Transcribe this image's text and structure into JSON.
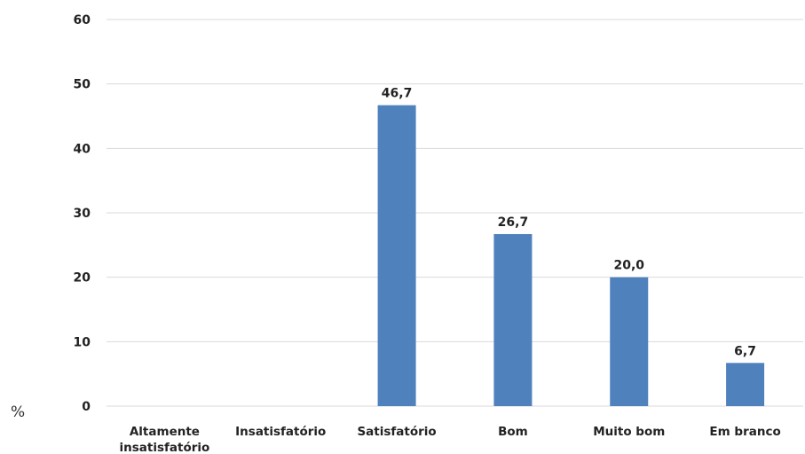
{
  "chart_data": {
    "type": "bar",
    "categories": [
      "Altamente insatisfatório",
      "Insatisfatório",
      "Satisfatório",
      "Bom",
      "Muito bom",
      "Em branco"
    ],
    "category_lines": [
      [
        "Altamente",
        "insatisfatório"
      ],
      [
        "Insatisfatório"
      ],
      [
        "Satisfatório"
      ],
      [
        "Bom"
      ],
      [
        "Muito bom"
      ],
      [
        "Em branco"
      ]
    ],
    "values": [
      0,
      0,
      46.7,
      26.7,
      20.0,
      6.7
    ],
    "data_labels": [
      "",
      "",
      "46,7",
      "26,7",
      "20,0",
      "6,7"
    ],
    "title": "",
    "xlabel": "",
    "ylabel": "%",
    "ylim": [
      0,
      60
    ],
    "yticks": [
      0,
      10,
      20,
      30,
      40,
      50,
      60
    ],
    "grid": true,
    "bar_color": "#4f81bd"
  }
}
